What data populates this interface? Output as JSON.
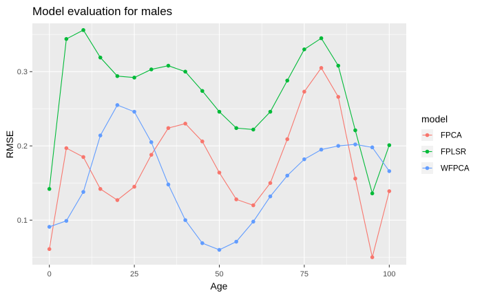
{
  "chart_data": {
    "type": "line",
    "title": "Model evaluation for males",
    "xlabel": "Age",
    "ylabel": "RMSE",
    "xlim": [
      -5,
      105
    ],
    "ylim": [
      0.04,
      0.365
    ],
    "x_ticks": [
      0,
      25,
      50,
      75,
      100
    ],
    "x_tick_labels": [
      "0",
      "25",
      "50",
      "75",
      "100"
    ],
    "y_ticks": [
      0.1,
      0.2,
      0.3
    ],
    "y_tick_labels": [
      "0.1",
      "0.2",
      "0.3"
    ],
    "x": [
      0,
      5,
      10,
      15,
      20,
      25,
      30,
      35,
      40,
      45,
      50,
      55,
      60,
      65,
      70,
      75,
      80,
      85,
      90,
      95,
      100
    ],
    "legend_title": "model",
    "legend_position": "right",
    "series": [
      {
        "name": "FPCA",
        "color": "#F8766D",
        "values": [
          0.061,
          0.197,
          0.185,
          0.142,
          0.127,
          0.145,
          0.188,
          0.224,
          0.23,
          0.206,
          0.164,
          0.128,
          0.12,
          0.15,
          0.209,
          0.273,
          0.305,
          0.266,
          0.156,
          0.05,
          0.139
        ]
      },
      {
        "name": "FPLSR",
        "color": "#00BA38",
        "values": [
          0.142,
          0.344,
          0.356,
          0.319,
          0.294,
          0.292,
          0.303,
          0.308,
          0.3,
          0.274,
          0.246,
          0.224,
          0.222,
          0.246,
          0.288,
          0.33,
          0.345,
          0.308,
          0.221,
          0.136,
          0.201
        ]
      },
      {
        "name": "WFPCA",
        "color": "#619CFF",
        "values": [
          0.091,
          0.099,
          0.138,
          0.214,
          0.255,
          0.246,
          0.205,
          0.148,
          0.1,
          0.069,
          0.06,
          0.071,
          0.098,
          0.132,
          0.16,
          0.182,
          0.195,
          0.2,
          0.202,
          0.198,
          0.166
        ]
      }
    ]
  }
}
